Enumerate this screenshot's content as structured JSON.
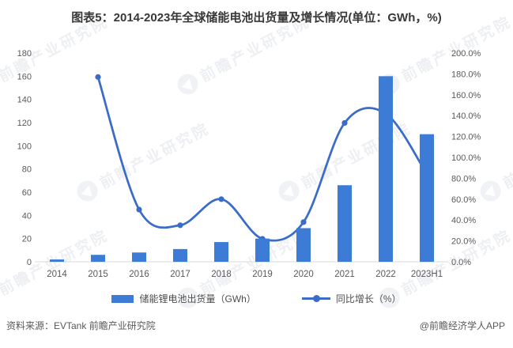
{
  "title": "图表5：2014-2023年全球储能电池出货量及增长情况(单位：GWh，%)",
  "watermark": {
    "text": "前瞻产业研究院"
  },
  "footer": {
    "source": "资料来源：EVTank 前瞻产业研究院",
    "brand": "@前瞻经济学人APP"
  },
  "chart_data": {
    "type": "bar+line",
    "categories": [
      "2014",
      "2015",
      "2016",
      "2017",
      "2018",
      "2019",
      "2020",
      "2021",
      "2022",
      "2023H1"
    ],
    "series": [
      {
        "name": "储能锂电池出货量（GWh）",
        "type": "bar",
        "axis": "left",
        "color": "#3c7cd6",
        "values": [
          2,
          6,
          8,
          11,
          17,
          20,
          29,
          66,
          160,
          110
        ]
      },
      {
        "name": "同比增长（%）",
        "type": "line",
        "axis": "right",
        "color": "#3a6cc8",
        "values": [
          null,
          177,
          50,
          35,
          60,
          22,
          38,
          133,
          142,
          84
        ]
      }
    ],
    "left_axis": {
      "min": 0,
      "max": 180,
      "step": 20
    },
    "right_axis": {
      "min": 0,
      "max": 200,
      "step": 20,
      "decimals": 1,
      "suffix": "%"
    },
    "grid": false,
    "legend_position": "bottom",
    "axis_line_color": "#d9d9d9"
  }
}
